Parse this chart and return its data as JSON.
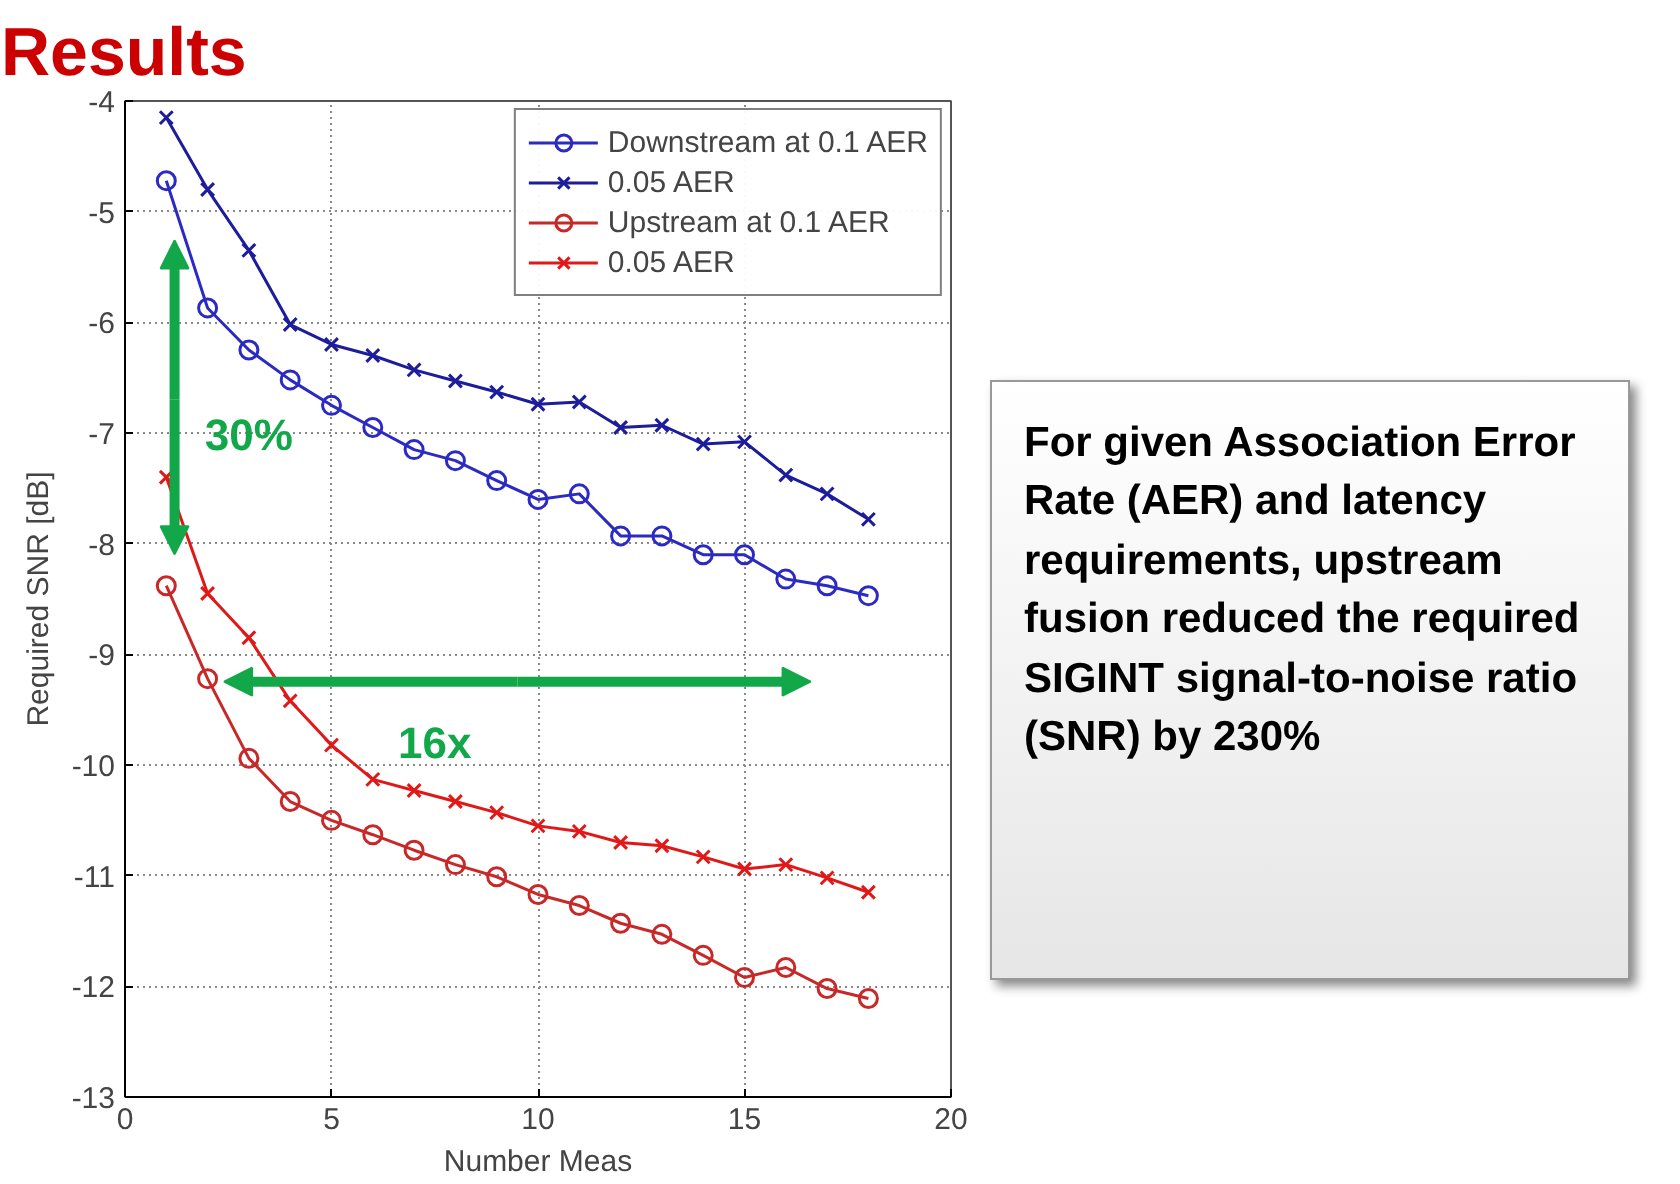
{
  "chart_data": {
    "type": "line",
    "title": "Results",
    "xlabel": "Number Meas",
    "ylabel": "Required SNR [dB]",
    "x": [
      1,
      2,
      3,
      4,
      5,
      6,
      7,
      8,
      9,
      10,
      11,
      12,
      13,
      14,
      15,
      16,
      17,
      18
    ],
    "series": [
      {
        "name": "Downstream at 0.1 AER",
        "color": "#2b2bc4",
        "marker": "circle",
        "values": [
          -4.72,
          -5.87,
          -6.25,
          -6.52,
          -6.75,
          -6.95,
          -7.15,
          -7.25,
          -7.43,
          -7.6,
          -7.55,
          -7.93,
          -7.93,
          -8.1,
          -8.1,
          -8.32,
          -8.38,
          -8.47
        ]
      },
      {
        "name": "0.05 AER",
        "color": "#1c1c9c",
        "marker": "cross",
        "values": [
          -4.15,
          -4.8,
          -5.35,
          -6.02,
          -6.2,
          -6.3,
          -6.43,
          -6.53,
          -6.63,
          -6.74,
          -6.72,
          -6.95,
          -6.93,
          -7.1,
          -7.08,
          -7.38,
          -7.55,
          -7.78
        ]
      },
      {
        "name": "Upstream at 0.1 AER",
        "color": "#c82828",
        "marker": "circle",
        "values": [
          -8.38,
          -9.22,
          -9.94,
          -10.33,
          -10.5,
          -10.63,
          -10.77,
          -10.9,
          -11.01,
          -11.17,
          -11.27,
          -11.43,
          -11.53,
          -11.72,
          -11.92,
          -11.83,
          -12.02,
          -12.11
        ]
      },
      {
        "name": "0.05 AER",
        "color": "#e01818",
        "marker": "cross",
        "values": [
          -7.4,
          -8.45,
          -8.85,
          -9.42,
          -9.82,
          -10.13,
          -10.23,
          -10.33,
          -10.43,
          -10.55,
          -10.6,
          -10.7,
          -10.73,
          -10.83,
          -10.94,
          -10.9,
          -11.02,
          -11.15
        ]
      }
    ],
    "xlim": [
      0,
      20
    ],
    "xticks": [
      0,
      5,
      10,
      15,
      20
    ],
    "ylim": [
      -13,
      -4
    ],
    "yticks": [
      -4,
      -5,
      -6,
      -7,
      -8,
      -9,
      -10,
      -11,
      -12,
      -13
    ],
    "grid": true,
    "legend": "top right",
    "line_style": "solid",
    "annotations": [
      "30%",
      "16x",
      "For given Association Error Rate (AER) and latency requirements, upstream fusion reduced the required SIGINT signal-to-noise ratio (SNR) by 230%"
    ]
  }
}
